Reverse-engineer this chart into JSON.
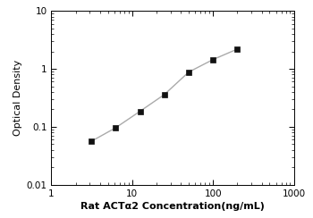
{
  "x": [
    3.125,
    6.25,
    12.5,
    25,
    50,
    100,
    200
  ],
  "y": [
    0.056,
    0.096,
    0.185,
    0.36,
    0.88,
    1.45,
    2.2
  ],
  "xlabel": "Rat ACTα2 Concentration(ng/mL)",
  "ylabel": "Optical Density",
  "xlim": [
    1,
    1000
  ],
  "ylim": [
    0.01,
    10
  ],
  "line_color": "#aaaaaa",
  "marker_color": "#111111",
  "marker": "s",
  "marker_size": 4,
  "line_width": 1.0,
  "background_color": "#ffffff",
  "xlabel_fontsize": 8,
  "ylabel_fontsize": 8,
  "tick_fontsize": 7.5,
  "xticks": [
    1,
    10,
    100,
    1000
  ],
  "xticklabels": [
    "1",
    "10",
    "100",
    "1000"
  ],
  "yticks": [
    0.01,
    0.1,
    1,
    10
  ],
  "yticklabels": [
    "0.01",
    "0.1",
    "1",
    "10"
  ]
}
